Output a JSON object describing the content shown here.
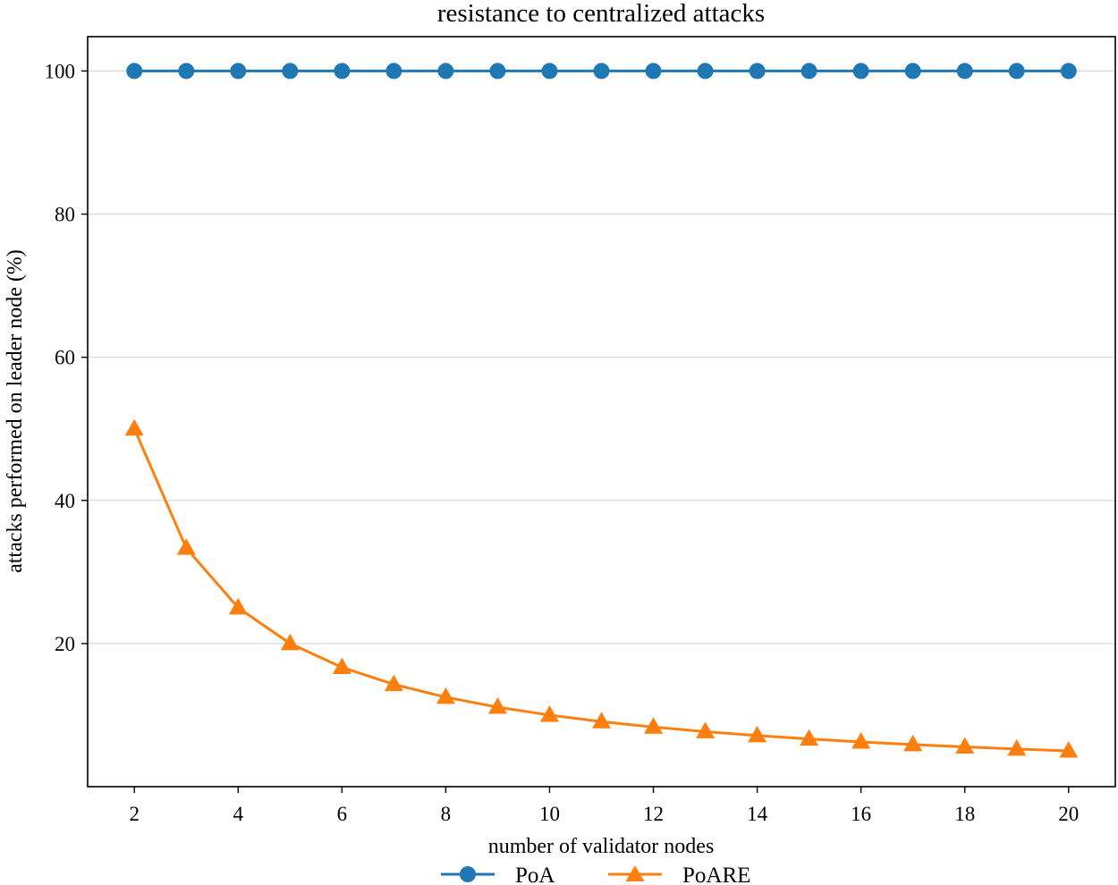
{
  "chart_data": {
    "type": "line",
    "title": "resistance to centralized attacks",
    "xlabel": "number of validator nodes",
    "ylabel": "attacks performed on leader node (%)",
    "x": [
      2,
      3,
      4,
      5,
      6,
      7,
      8,
      9,
      10,
      11,
      12,
      13,
      14,
      15,
      16,
      17,
      18,
      19,
      20
    ],
    "xlim": [
      1.1,
      20.9
    ],
    "ylim": [
      0,
      104.8
    ],
    "x_ticks": [
      "2",
      "4",
      "6",
      "8",
      "10",
      "12",
      "14",
      "16",
      "18",
      "20"
    ],
    "y_ticks": [
      "20",
      "40",
      "60",
      "80",
      "100"
    ],
    "grid": "horizontal",
    "legend_position": "bottom-center",
    "series": [
      {
        "name": "PoA",
        "color": "#1f77b4",
        "marker": "circle",
        "values": [
          100,
          100,
          100,
          100,
          100,
          100,
          100,
          100,
          100,
          100,
          100,
          100,
          100,
          100,
          100,
          100,
          100,
          100,
          100
        ]
      },
      {
        "name": "PoARE",
        "color": "#ff7f0e",
        "marker": "triangle",
        "values": [
          50,
          33.33,
          25,
          20,
          16.67,
          14.29,
          12.5,
          11.11,
          10,
          9.09,
          8.33,
          7.69,
          7.14,
          6.67,
          6.25,
          5.88,
          5.56,
          5.26,
          5
        ]
      }
    ]
  }
}
